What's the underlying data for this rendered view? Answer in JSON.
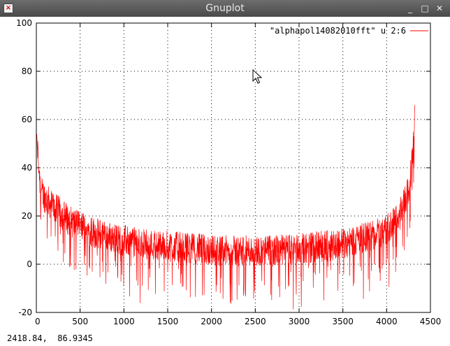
{
  "window": {
    "title": "Gnuplot",
    "icon": "gnuplot-app-icon",
    "controls": {
      "minimize": "_",
      "maximize": "□",
      "close": "✕"
    }
  },
  "status": {
    "coordinates": "2418.84,  86.9345"
  },
  "colors": {
    "series": "#ff0000",
    "grid": "#000000",
    "background": "#ffffff"
  },
  "chart_data": {
    "type": "line",
    "title": "",
    "xlabel": "",
    "ylabel": "",
    "xlim": [
      0,
      4500
    ],
    "ylim": [
      -20,
      100
    ],
    "xticks": [
      "0",
      "500",
      "1000",
      "1500",
      "2000",
      "2500",
      "3000",
      "3500",
      "4000",
      "4500"
    ],
    "yticks": [
      "-20",
      "0",
      "20",
      "40",
      "60",
      "80",
      "100"
    ],
    "grid": true,
    "legend_position": "top-right",
    "series": [
      {
        "name": "\"alphapol14082010fft\" u 2:6",
        "color": "#ff0000",
        "x": [
          5,
          50,
          100,
          200,
          300,
          400,
          500,
          700,
          900,
          1200,
          1500,
          1800,
          2100,
          2400,
          2700,
          3000,
          3300,
          3600,
          3800,
          4000,
          4150,
          4250,
          4300,
          4320
        ],
        "y": [
          52,
          30,
          27,
          23,
          20,
          17,
          15,
          12,
          10,
          8,
          7,
          6,
          5,
          5,
          5,
          6,
          7,
          9,
          11,
          14,
          20,
          30,
          45,
          66
        ]
      }
    ]
  }
}
